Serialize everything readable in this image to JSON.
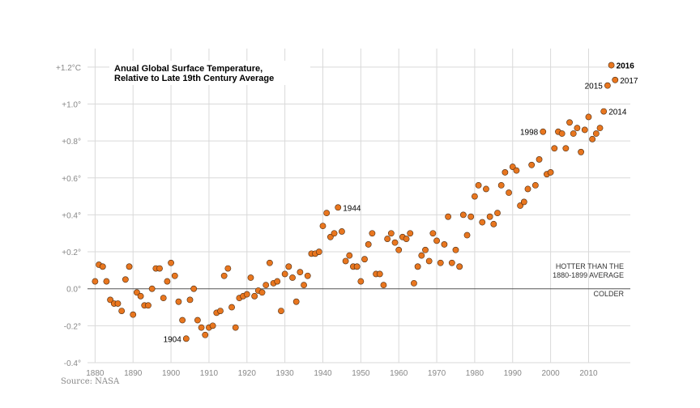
{
  "source": "Source: NASA",
  "chart_data": {
    "type": "scatter",
    "title": "Anual Global Surface Temperature,",
    "subtitle": "Relative to Late 19th Century Average",
    "xlabel": "",
    "ylabel": "",
    "xlim": [
      1878,
      2021
    ],
    "ylim": [
      -0.4,
      1.3
    ],
    "xticks": [
      1880,
      1890,
      1900,
      1910,
      1920,
      1930,
      1940,
      1950,
      1960,
      1970,
      1980,
      1990,
      2000,
      2010
    ],
    "xtick_labels": [
      "1880",
      "1890",
      "1900",
      "1910",
      "1920",
      "1930",
      "1940",
      "1950",
      "1960",
      "1970",
      "1980",
      "1990",
      "2000",
      "2010"
    ],
    "yticks": [
      -0.4,
      -0.2,
      0.0,
      0.2,
      0.4,
      0.6,
      0.8,
      1.0,
      1.2
    ],
    "ytick_labels": [
      "-0.4°",
      "-0.2°",
      "0.0°",
      "+0.2°",
      "+0.4°",
      "+0.6°",
      "+0.8°",
      "+1.0°",
      "+1.2°C"
    ],
    "grid": true,
    "color": "#e8761f",
    "annotations": {
      "hotter": [
        "HOTTER THAN THE",
        "1880-1899 AVERAGE"
      ],
      "colder": "COLDER"
    },
    "point_labels": [
      {
        "x": 1904,
        "label": "1904",
        "side": "left",
        "bold": false
      },
      {
        "x": 1944,
        "label": "1944",
        "side": "right",
        "bold": false
      },
      {
        "x": 1998,
        "label": "1998",
        "side": "left",
        "bold": false
      },
      {
        "x": 2014,
        "label": "2014",
        "side": "right",
        "bold": false
      },
      {
        "x": 2015,
        "label": "2015",
        "side": "left",
        "bold": false
      },
      {
        "x": 2016,
        "label": "2016",
        "side": "right",
        "bold": true
      },
      {
        "x": 2017,
        "label": "2017",
        "side": "right",
        "bold": false
      }
    ],
    "series": [
      {
        "points": [
          [
            1880,
            0.04
          ],
          [
            1881,
            0.13
          ],
          [
            1882,
            0.12
          ],
          [
            1883,
            0.04
          ],
          [
            1884,
            -0.06
          ],
          [
            1885,
            -0.08
          ],
          [
            1886,
            -0.08
          ],
          [
            1887,
            -0.12
          ],
          [
            1888,
            0.05
          ],
          [
            1889,
            0.12
          ],
          [
            1890,
            -0.14
          ],
          [
            1891,
            -0.02
          ],
          [
            1892,
            -0.04
          ],
          [
            1893,
            -0.09
          ],
          [
            1894,
            -0.09
          ],
          [
            1895,
            0.0
          ],
          [
            1896,
            0.11
          ],
          [
            1897,
            0.11
          ],
          [
            1898,
            -0.05
          ],
          [
            1899,
            0.04
          ],
          [
            1900,
            0.14
          ],
          [
            1901,
            0.07
          ],
          [
            1902,
            -0.07
          ],
          [
            1903,
            -0.17
          ],
          [
            1904,
            -0.27
          ],
          [
            1905,
            -0.06
          ],
          [
            1906,
            0.0
          ],
          [
            1907,
            -0.17
          ],
          [
            1908,
            -0.21
          ],
          [
            1909,
            -0.25
          ],
          [
            1910,
            -0.21
          ],
          [
            1911,
            -0.2
          ],
          [
            1912,
            -0.13
          ],
          [
            1913,
            -0.12
          ],
          [
            1914,
            0.07
          ],
          [
            1915,
            0.11
          ],
          [
            1916,
            -0.1
          ],
          [
            1917,
            -0.21
          ],
          [
            1918,
            -0.05
          ],
          [
            1919,
            -0.04
          ],
          [
            1920,
            -0.03
          ],
          [
            1921,
            0.06
          ],
          [
            1922,
            -0.04
          ],
          [
            1923,
            -0.01
          ],
          [
            1924,
            -0.02
          ],
          [
            1925,
            0.02
          ],
          [
            1926,
            0.14
          ],
          [
            1927,
            0.03
          ],
          [
            1928,
            0.04
          ],
          [
            1929,
            -0.12
          ],
          [
            1930,
            0.08
          ],
          [
            1931,
            0.12
          ],
          [
            1932,
            0.06
          ],
          [
            1933,
            -0.07
          ],
          [
            1934,
            0.09
          ],
          [
            1935,
            0.02
          ],
          [
            1936,
            0.07
          ],
          [
            1937,
            0.19
          ],
          [
            1938,
            0.19
          ],
          [
            1939,
            0.2
          ],
          [
            1940,
            0.34
          ],
          [
            1941,
            0.41
          ],
          [
            1942,
            0.28
          ],
          [
            1943,
            0.3
          ],
          [
            1944,
            0.44
          ],
          [
            1945,
            0.31
          ],
          [
            1946,
            0.15
          ],
          [
            1947,
            0.18
          ],
          [
            1948,
            0.12
          ],
          [
            1949,
            0.12
          ],
          [
            1950,
            0.04
          ],
          [
            1951,
            0.16
          ],
          [
            1952,
            0.24
          ],
          [
            1953,
            0.3
          ],
          [
            1954,
            0.08
          ],
          [
            1955,
            0.08
          ],
          [
            1956,
            0.02
          ],
          [
            1957,
            0.27
          ],
          [
            1958,
            0.3
          ],
          [
            1959,
            0.25
          ],
          [
            1960,
            0.21
          ],
          [
            1961,
            0.28
          ],
          [
            1962,
            0.27
          ],
          [
            1963,
            0.3
          ],
          [
            1964,
            0.03
          ],
          [
            1965,
            0.12
          ],
          [
            1966,
            0.18
          ],
          [
            1967,
            0.21
          ],
          [
            1968,
            0.15
          ],
          [
            1969,
            0.3
          ],
          [
            1970,
            0.26
          ],
          [
            1971,
            0.14
          ],
          [
            1972,
            0.24
          ],
          [
            1973,
            0.39
          ],
          [
            1974,
            0.14
          ],
          [
            1975,
            0.21
          ],
          [
            1976,
            0.12
          ],
          [
            1977,
            0.4
          ],
          [
            1978,
            0.29
          ],
          [
            1979,
            0.39
          ],
          [
            1980,
            0.5
          ],
          [
            1981,
            0.56
          ],
          [
            1982,
            0.36
          ],
          [
            1983,
            0.54
          ],
          [
            1984,
            0.39
          ],
          [
            1985,
            0.35
          ],
          [
            1986,
            0.41
          ],
          [
            1987,
            0.56
          ],
          [
            1988,
            0.63
          ],
          [
            1989,
            0.52
          ],
          [
            1990,
            0.66
          ],
          [
            1991,
            0.64
          ],
          [
            1992,
            0.45
          ],
          [
            1993,
            0.47
          ],
          [
            1994,
            0.54
          ],
          [
            1995,
            0.67
          ],
          [
            1996,
            0.56
          ],
          [
            1997,
            0.7
          ],
          [
            1998,
            0.85
          ],
          [
            1999,
            0.62
          ],
          [
            2000,
            0.63
          ],
          [
            2001,
            0.76
          ],
          [
            2002,
            0.85
          ],
          [
            2003,
            0.84
          ],
          [
            2004,
            0.76
          ],
          [
            2005,
            0.9
          ],
          [
            2006,
            0.84
          ],
          [
            2007,
            0.87
          ],
          [
            2008,
            0.74
          ],
          [
            2009,
            0.86
          ],
          [
            2010,
            0.93
          ],
          [
            2011,
            0.81
          ],
          [
            2012,
            0.84
          ],
          [
            2013,
            0.87
          ],
          [
            2014,
            0.96
          ],
          [
            2015,
            1.1
          ],
          [
            2016,
            1.21
          ],
          [
            2017,
            1.13
          ]
        ]
      }
    ]
  }
}
